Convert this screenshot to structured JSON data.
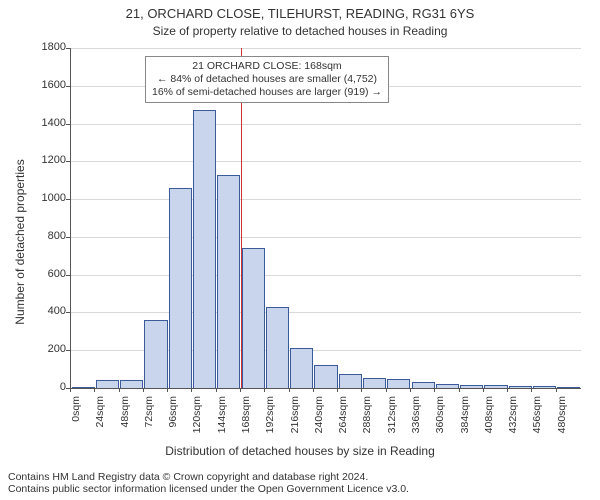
{
  "title": "21, ORCHARD CLOSE, TILEHURST, READING, RG31 6YS",
  "subtitle": "Size of property relative to detached houses in Reading",
  "ylabel": "Number of detached properties",
  "xlabel": "Distribution of detached houses by size in Reading",
  "footnote_line1": "Contains HM Land Registry data © Crown copyright and database right 2024.",
  "footnote_line2": "Contains public sector information licensed under the Open Government Licence v3.0.",
  "chart": {
    "type": "bar",
    "ylim": [
      0,
      1800
    ],
    "ytick_step": 200,
    "background_color": "#ffffff",
    "grid_color": "#d9d9d9",
    "axis_color": "#555555",
    "bar_fill": "#c9d5ec",
    "bar_stroke": "#3b5a9a",
    "bar_width_ratio": 0.95,
    "reference_line": {
      "x_value": 168,
      "color": "#cc3333",
      "width": 1.5
    },
    "annotation": {
      "line1": "21 ORCHARD CLOSE: 168sqm",
      "line2": "← 84% of detached houses are smaller (4,752)",
      "line3": "16% of semi-detached houses are larger (919) →",
      "border_color": "#888888",
      "background": "#ffffff",
      "fontsize": 10.5
    },
    "categories": [
      "0sqm",
      "24sqm",
      "48sqm",
      "72sqm",
      "96sqm",
      "120sqm",
      "144sqm",
      "168sqm",
      "192sqm",
      "216sqm",
      "240sqm",
      "264sqm",
      "288sqm",
      "312sqm",
      "336sqm",
      "360sqm",
      "384sqm",
      "408sqm",
      "432sqm",
      "456sqm",
      "480sqm"
    ],
    "values": [
      0,
      40,
      45,
      360,
      1060,
      1470,
      1130,
      740,
      430,
      210,
      120,
      75,
      55,
      50,
      30,
      20,
      15,
      15,
      10,
      10,
      8
    ],
    "title_fontsize": 13,
    "subtitle_fontsize": 12,
    "label_fontsize": 12,
    "tick_fontsize": 11
  }
}
